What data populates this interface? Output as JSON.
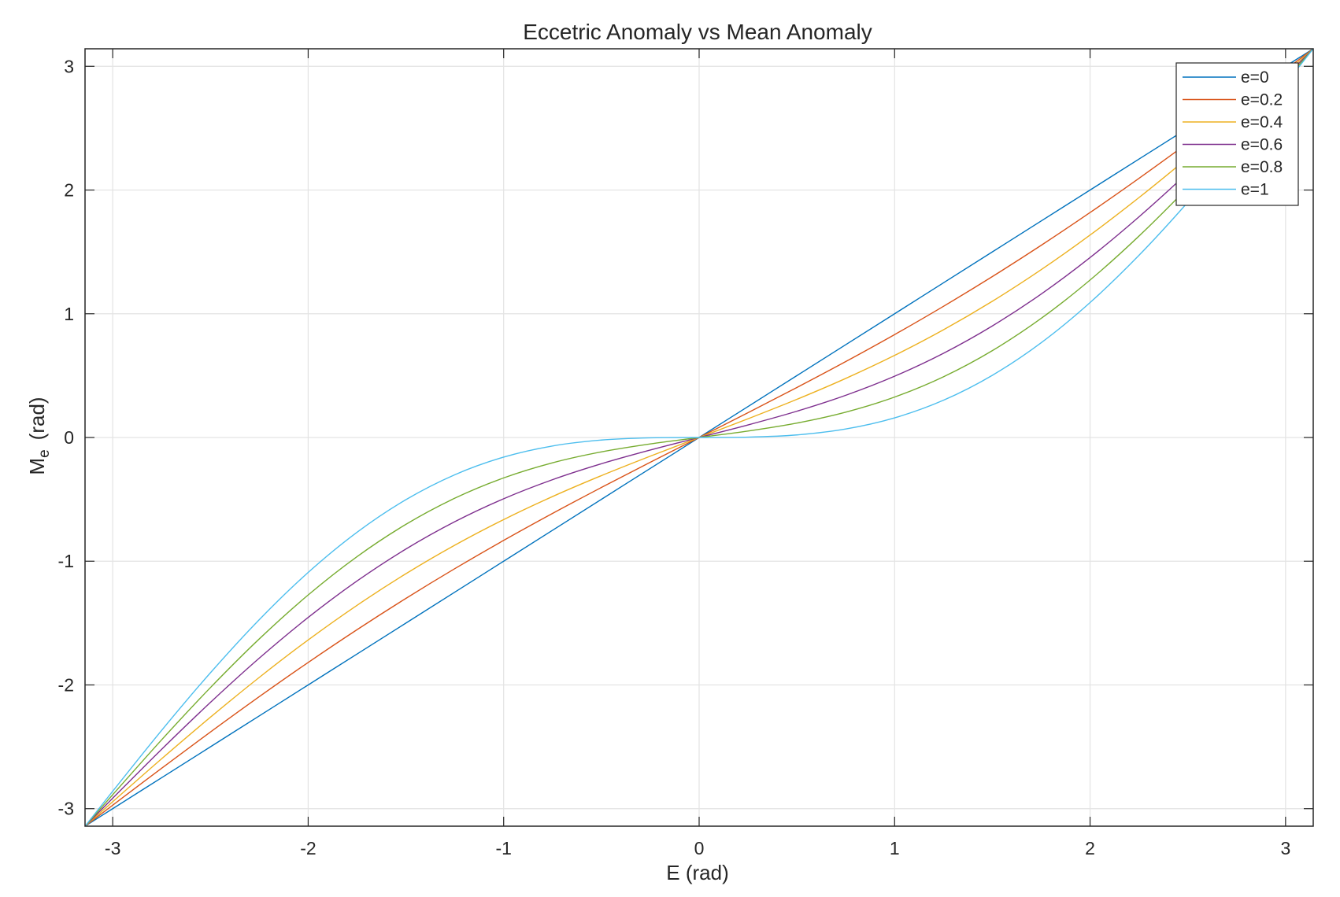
{
  "chart_data": {
    "type": "line",
    "title": "Eccetric Anomaly vs Mean Anomaly",
    "xlabel": "E (rad)",
    "ylabel": "M",
    "ylabel_subscript": "e",
    "ylabel_suffix": "(rad)",
    "xlim": [
      -3.1416,
      3.1416
    ],
    "ylim": [
      -3.1416,
      3.1416
    ],
    "xticks": [
      -3,
      -2,
      -1,
      0,
      1,
      2,
      3
    ],
    "yticks": [
      -3,
      -2,
      -1,
      0,
      1,
      2,
      3
    ],
    "xtick_labels": [
      "-3",
      "-2",
      "-1",
      "0",
      "1",
      "2",
      "3"
    ],
    "ytick_labels": [
      "-3",
      "-2",
      "-1",
      "0",
      "1",
      "2",
      "3"
    ],
    "grid": true,
    "legend_position": "top-right",
    "x": [
      -3.1416,
      -3.0,
      -2.75,
      -2.5,
      -2.25,
      -2.0,
      -1.75,
      -1.5,
      -1.25,
      -1.0,
      -0.75,
      -0.5,
      -0.25,
      0.0,
      0.25,
      0.5,
      0.75,
      1.0,
      1.25,
      1.5,
      1.75,
      2.0,
      2.25,
      2.5,
      2.75,
      3.0,
      3.1416
    ],
    "series": [
      {
        "name": "e=0",
        "color": "#0072BD",
        "values": [
          -3.1416,
          -3.0,
          -2.75,
          -2.5,
          -2.25,
          -2.0,
          -1.75,
          -1.5,
          -1.25,
          -1.0,
          -0.75,
          -0.5,
          -0.25,
          0.0,
          0.25,
          0.5,
          0.75,
          1.0,
          1.25,
          1.5,
          1.75,
          2.0,
          2.25,
          2.5,
          2.75,
          3.0,
          3.1416
        ]
      },
      {
        "name": "e=0.2",
        "color": "#D95319",
        "values": [
          -3.1416,
          -2.9718,
          -2.6735,
          -2.3803,
          -2.0944,
          -1.8181,
          -1.5532,
          -1.3005,
          -1.0602,
          -0.8317,
          -0.6137,
          -0.4041,
          -0.2005,
          0.0,
          0.2005,
          0.4041,
          0.6137,
          0.8317,
          1.0602,
          1.3005,
          1.5532,
          1.8181,
          2.0944,
          2.3803,
          2.6735,
          2.9718,
          3.1416
        ]
      },
      {
        "name": "e=0.4",
        "color": "#EDB120",
        "values": [
          -3.1416,
          -2.9436,
          -2.5969,
          -2.2606,
          -1.9388,
          -1.6363,
          -1.3564,
          -1.101,
          -0.8704,
          -0.6634,
          -0.4773,
          -0.3082,
          -0.151,
          0.0,
          0.151,
          0.3082,
          0.4773,
          0.6634,
          0.8704,
          1.101,
          1.3564,
          1.6363,
          1.9388,
          2.2606,
          2.5969,
          2.9436,
          3.1416
        ]
      },
      {
        "name": "e=0.6",
        "color": "#7E2F8E",
        "values": [
          -3.1416,
          -2.9153,
          -2.5204,
          -2.1409,
          -1.7832,
          -1.4544,
          -1.1596,
          -0.9015,
          -0.6806,
          -0.4951,
          -0.341,
          -0.2123,
          -0.1016,
          0.0,
          0.1016,
          0.2123,
          0.341,
          0.4951,
          0.6806,
          0.9015,
          1.1596,
          1.4544,
          1.7832,
          2.1409,
          2.5204,
          2.9153,
          3.1416
        ]
      },
      {
        "name": "e=0.8",
        "color": "#77AC30",
        "values": [
          -3.1416,
          -2.8871,
          -2.4439,
          -2.0212,
          -1.6276,
          -1.2726,
          -0.9628,
          -0.702,
          -0.4908,
          -0.3268,
          -0.2047,
          -0.1164,
          -0.0521,
          0.0,
          0.0521,
          0.1164,
          0.2047,
          0.3268,
          0.4908,
          0.702,
          0.9628,
          1.2726,
          1.6276,
          2.0212,
          2.4439,
          2.8871,
          3.1416
        ]
      },
      {
        "name": "e=1",
        "color": "#4DBEEE",
        "values": [
          -3.1416,
          -2.8589,
          -2.3674,
          -1.9015,
          -1.4719,
          -1.0907,
          -0.766,
          -0.5025,
          -0.301,
          -0.1585,
          -0.0684,
          -0.0206,
          -0.0026,
          0.0,
          0.0026,
          0.0206,
          0.0684,
          0.1585,
          0.301,
          0.5025,
          0.766,
          1.0907,
          1.4719,
          1.9015,
          2.3674,
          2.8589,
          3.1416
        ]
      }
    ]
  }
}
